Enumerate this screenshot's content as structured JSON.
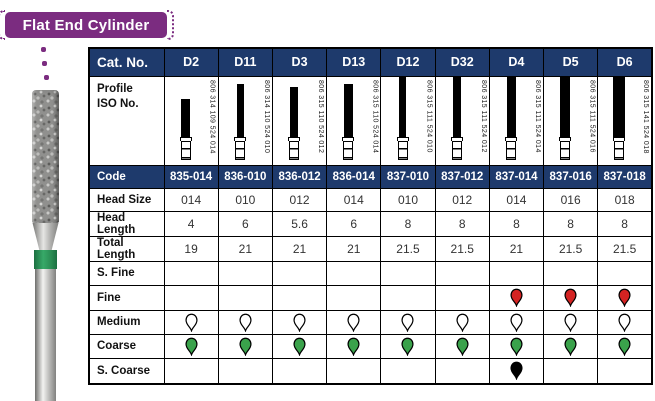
{
  "banner": {
    "title": "Flat End Cylinder"
  },
  "colors": {
    "banner_purple": "#7b2c80",
    "header_navy": "#1e3a6c",
    "fine_red": "#d42322",
    "medium_white": "#ffffff",
    "coarse_green": "#3aa24b",
    "s_coarse_black": "#000000"
  },
  "photo": {
    "description": "diamond bur with green coarse-grit band"
  },
  "table": {
    "header_label": "Cat. No.",
    "profile_label_line1": "Profile",
    "profile_label_line2": "ISO No.",
    "code_label": "Code",
    "spec_row_labels": {
      "head_size": "Head Size",
      "head_length": "Head Length",
      "total_length": "Total Length"
    },
    "grit_row_labels": {
      "s_fine": "S. Fine",
      "fine": "Fine",
      "medium": "Medium",
      "coarse": "Coarse",
      "s_coarse": "S. Coarse"
    },
    "columns": [
      {
        "cat_no": "D2",
        "iso_no": "806 314 109 524 014",
        "code": "835-014",
        "head_size": "014",
        "head_length": "4",
        "total_length": "19",
        "grits": {
          "s_fine": false,
          "fine": false,
          "medium": true,
          "coarse": true,
          "s_coarse": false
        }
      },
      {
        "cat_no": "D11",
        "iso_no": "806 314 110 524 010",
        "code": "836-010",
        "head_size": "010",
        "head_length": "6",
        "total_length": "21",
        "grits": {
          "s_fine": false,
          "fine": false,
          "medium": true,
          "coarse": true,
          "s_coarse": false
        }
      },
      {
        "cat_no": "D3",
        "iso_no": "806 315 110 524 012",
        "code": "836-012",
        "head_size": "012",
        "head_length": "5.6",
        "total_length": "21",
        "grits": {
          "s_fine": false,
          "fine": false,
          "medium": true,
          "coarse": true,
          "s_coarse": false
        }
      },
      {
        "cat_no": "D13",
        "iso_no": "806 315 110 524 014",
        "code": "836-014",
        "head_size": "014",
        "head_length": "6",
        "total_length": "21",
        "grits": {
          "s_fine": false,
          "fine": false,
          "medium": true,
          "coarse": true,
          "s_coarse": false
        }
      },
      {
        "cat_no": "D12",
        "iso_no": "806 315 111 524 010",
        "code": "837-010",
        "head_size": "010",
        "head_length": "8",
        "total_length": "21.5",
        "grits": {
          "s_fine": false,
          "fine": false,
          "medium": true,
          "coarse": true,
          "s_coarse": false
        }
      },
      {
        "cat_no": "D32",
        "iso_no": "806 315 111 524 012",
        "code": "837-012",
        "head_size": "012",
        "head_length": "8",
        "total_length": "21.5",
        "grits": {
          "s_fine": false,
          "fine": false,
          "medium": true,
          "coarse": true,
          "s_coarse": false
        }
      },
      {
        "cat_no": "D4",
        "iso_no": "806 315 111 524 014",
        "code": "837-014",
        "head_size": "014",
        "head_length": "8",
        "total_length": "21",
        "grits": {
          "s_fine": false,
          "fine": true,
          "medium": true,
          "coarse": true,
          "s_coarse": true
        }
      },
      {
        "cat_no": "D5",
        "iso_no": "806 315 111 524 016",
        "code": "837-016",
        "head_size": "016",
        "head_length": "8",
        "total_length": "21.5",
        "grits": {
          "s_fine": false,
          "fine": true,
          "medium": true,
          "coarse": true,
          "s_coarse": false
        }
      },
      {
        "cat_no": "D6",
        "iso_no": "806 315 141 524 018",
        "code": "837-018",
        "head_size": "018",
        "head_length": "8",
        "total_length": "21.5",
        "grits": {
          "s_fine": false,
          "fine": true,
          "medium": true,
          "coarse": true,
          "s_coarse": false
        }
      }
    ]
  }
}
